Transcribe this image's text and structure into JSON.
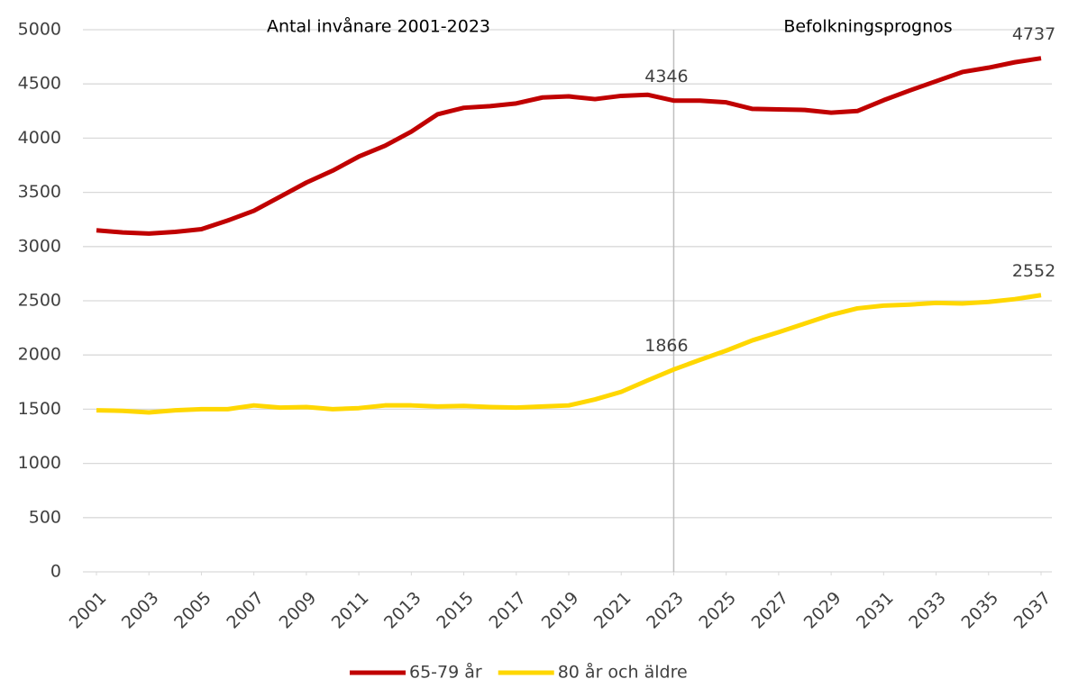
{
  "chart_data": {
    "type": "line",
    "x": [
      2001,
      2002,
      2003,
      2004,
      2005,
      2006,
      2007,
      2008,
      2009,
      2010,
      2011,
      2012,
      2013,
      2014,
      2015,
      2016,
      2017,
      2018,
      2019,
      2020,
      2021,
      2022,
      2023,
      2024,
      2025,
      2026,
      2027,
      2028,
      2029,
      2030,
      2031,
      2032,
      2033,
      2034,
      2035,
      2036,
      2037
    ],
    "xlim": [
      2001,
      2037
    ],
    "xticks": [
      2001,
      2003,
      2005,
      2007,
      2009,
      2011,
      2013,
      2015,
      2017,
      2019,
      2021,
      2023,
      2025,
      2027,
      2029,
      2031,
      2033,
      2035,
      2037
    ],
    "ylim": [
      0,
      5000
    ],
    "yticks": [
      0,
      500,
      1000,
      1500,
      2000,
      2500,
      3000,
      3500,
      4000,
      4500,
      5000
    ],
    "grid": true,
    "legend": "bottom",
    "divider_x": 2023,
    "annotations": [
      "Antal invånare 2001-2023",
      "Befolkningsprognos"
    ],
    "series": [
      {
        "name": "65-79 år",
        "color": "#c00000",
        "label_indices": [
          22,
          36
        ],
        "values": [
          3150,
          3130,
          3120,
          3135,
          3160,
          3240,
          3330,
          3460,
          3590,
          3700,
          3830,
          3930,
          4060,
          4220,
          4280,
          4295,
          4320,
          4375,
          4385,
          4360,
          4390,
          4400,
          4346,
          4346,
          4330,
          4270,
          4265,
          4260,
          4235,
          4250,
          4350,
          4440,
          4525,
          4610,
          4650,
          4700,
          4737
        ]
      },
      {
        "name": "80 år och äldre",
        "color": "#ffd700",
        "label_indices": [
          22,
          36
        ],
        "values": [
          1490,
          1485,
          1470,
          1490,
          1500,
          1500,
          1535,
          1515,
          1520,
          1500,
          1510,
          1535,
          1535,
          1525,
          1530,
          1520,
          1515,
          1525,
          1535,
          1590,
          1660,
          1765,
          1866,
          1955,
          2040,
          2135,
          2210,
          2290,
          2370,
          2430,
          2455,
          2465,
          2480,
          2475,
          2490,
          2515,
          2552
        ]
      }
    ]
  }
}
